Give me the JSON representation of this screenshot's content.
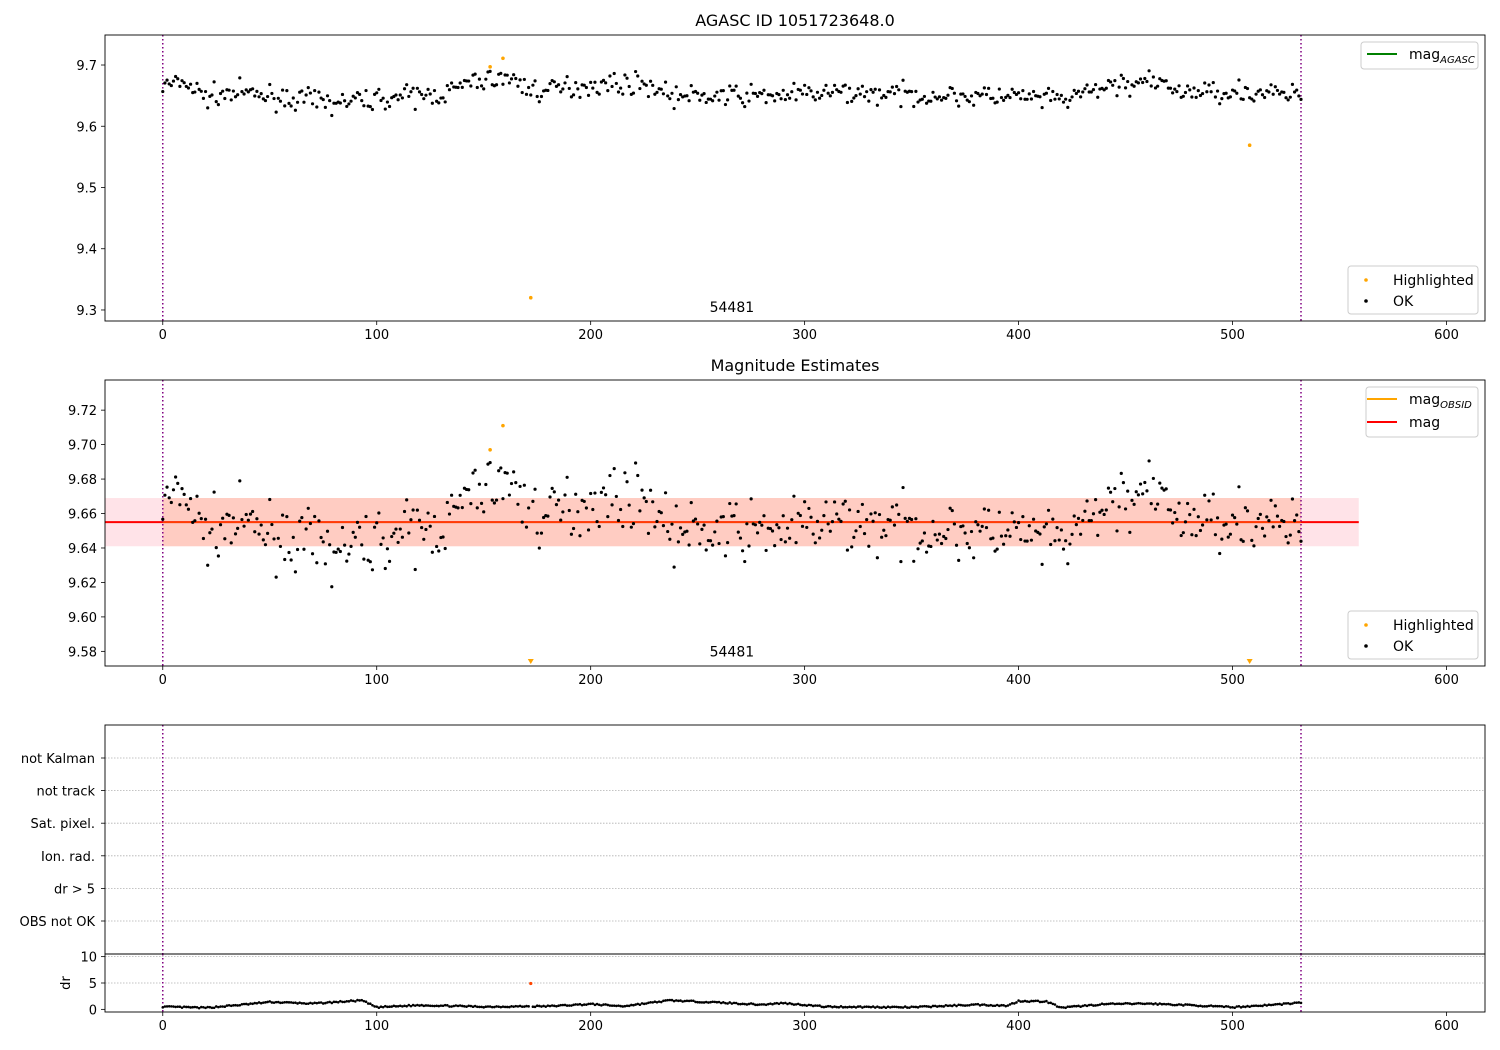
{
  "chart_data": [
    {
      "type": "scatter",
      "title": "AGASC ID 1051723648.0",
      "xlim": [
        -27,
        618
      ],
      "ylim": [
        9.282,
        9.749
      ],
      "xticks": [
        0,
        100,
        200,
        300,
        400,
        500,
        600
      ],
      "yticks": [
        9.3,
        9.4,
        9.5,
        9.6,
        9.7
      ],
      "vlines": [
        0,
        532
      ],
      "annotations": [
        {
          "x": 266,
          "y": 9.3,
          "text": "54481"
        }
      ],
      "legend_upper": {
        "placement": "upper right",
        "entries": [
          {
            "label": "mag",
            "subscript": "AGASC",
            "color": "#008000",
            "kind": "line"
          }
        ]
      },
      "legend_lower": {
        "placement": "lower right",
        "entries": [
          {
            "label": "Highlighted",
            "color": "#ffa500",
            "kind": "point"
          },
          {
            "label": "OK",
            "color": "#000000",
            "kind": "point"
          }
        ]
      },
      "series": [
        {
          "name": "OK",
          "color": "#000000",
          "values_desc": "per-frame magnitudes, noisy around 9.655"
        },
        {
          "name": "Highlighted",
          "color": "#ffa500",
          "x": [
            153,
            159,
            172,
            508
          ],
          "y": [
            9.697,
            9.711,
            9.32,
            9.569
          ]
        }
      ],
      "ok_envelope": [
        {
          "x": 0,
          "y": 9.665
        },
        {
          "x": 10,
          "y": 9.672
        },
        {
          "x": 20,
          "y": 9.648
        },
        {
          "x": 35,
          "y": 9.655
        },
        {
          "x": 60,
          "y": 9.645
        },
        {
          "x": 80,
          "y": 9.638
        },
        {
          "x": 100,
          "y": 9.645
        },
        {
          "x": 130,
          "y": 9.652
        },
        {
          "x": 145,
          "y": 9.672
        },
        {
          "x": 160,
          "y": 9.68
        },
        {
          "x": 175,
          "y": 9.657
        },
        {
          "x": 200,
          "y": 9.668
        },
        {
          "x": 225,
          "y": 9.67
        },
        {
          "x": 240,
          "y": 9.648
        },
        {
          "x": 280,
          "y": 9.65
        },
        {
          "x": 320,
          "y": 9.655
        },
        {
          "x": 360,
          "y": 9.65
        },
        {
          "x": 400,
          "y": 9.648
        },
        {
          "x": 420,
          "y": 9.642
        },
        {
          "x": 445,
          "y": 9.668
        },
        {
          "x": 460,
          "y": 9.672
        },
        {
          "x": 480,
          "y": 9.655
        },
        {
          "x": 500,
          "y": 9.658
        },
        {
          "x": 532,
          "y": 9.65
        }
      ]
    },
    {
      "type": "scatter",
      "title": "Magnitude Estimates",
      "xlim": [
        -27,
        618
      ],
      "ylim": [
        9.5715,
        9.7375
      ],
      "xticks": [
        0,
        100,
        200,
        300,
        400,
        500,
        600
      ],
      "yticks": [
        9.58,
        9.6,
        9.62,
        9.64,
        9.66,
        9.68,
        9.7,
        9.72
      ],
      "vlines": [
        0,
        532
      ],
      "mag_line": 9.655,
      "band_obsid": [
        9.641,
        9.669
      ],
      "band_mag": [
        9.641,
        9.669
      ],
      "band_xrange": [
        -27,
        559
      ],
      "band_obsid_xrange": [
        0,
        532
      ],
      "annotations": [
        {
          "x": 266,
          "y": 9.58,
          "text": "54481"
        }
      ],
      "legend_upper": {
        "placement": "upper right",
        "entries": [
          {
            "label": "mag",
            "subscript": "OBSID",
            "color": "#ffa500",
            "kind": "line"
          },
          {
            "label": "mag",
            "color": "#ff0000",
            "kind": "line"
          }
        ]
      },
      "legend_lower": {
        "placement": "lower right",
        "entries": [
          {
            "label": "Highlighted",
            "color": "#ffa500",
            "kind": "point"
          },
          {
            "label": "OK",
            "color": "#000000",
            "kind": "point"
          }
        ]
      },
      "series": [
        {
          "name": "OK",
          "color": "#000000"
        },
        {
          "name": "Highlighted",
          "color": "#ffa500",
          "x": [
            153,
            159
          ],
          "y": [
            9.697,
            9.711
          ]
        }
      ],
      "clipped_markers": [
        {
          "x": 172,
          "color": "#ffa500"
        },
        {
          "x": 508,
          "color": "#ffa500"
        }
      ]
    },
    {
      "type": "scatter",
      "xlim": [
        -27,
        618
      ],
      "flags": [
        "not Kalman",
        "not track",
        "Sat. pixel.",
        "Ion. rad.",
        "dr > 5",
        "OBS not OK"
      ],
      "vlines": [
        0,
        532
      ]
    },
    {
      "type": "scatter",
      "ylabel": "dr",
      "xlim": [
        -27,
        618
      ],
      "ylim": [
        -0.5,
        10.5
      ],
      "xticks": [
        0,
        100,
        200,
        300,
        400,
        500,
        600
      ],
      "yticks": [
        0,
        5,
        10
      ],
      "vlines": [
        0,
        532
      ],
      "series": [
        {
          "name": "OK",
          "color": "#000000"
        },
        {
          "name": "Highlighted",
          "color": "#ff4500",
          "x": [
            172
          ],
          "y": [
            4.9
          ]
        }
      ],
      "dr_profile": [
        {
          "x": 0,
          "y": 0.5
        },
        {
          "x": 20,
          "y": 0.3
        },
        {
          "x": 35,
          "y": 0.8
        },
        {
          "x": 50,
          "y": 1.4
        },
        {
          "x": 70,
          "y": 1.1
        },
        {
          "x": 93,
          "y": 1.7
        },
        {
          "x": 100,
          "y": 0.4
        },
        {
          "x": 120,
          "y": 0.8
        },
        {
          "x": 150,
          "y": 0.5
        },
        {
          "x": 180,
          "y": 0.6
        },
        {
          "x": 200,
          "y": 1.0
        },
        {
          "x": 215,
          "y": 0.6
        },
        {
          "x": 237,
          "y": 1.7
        },
        {
          "x": 260,
          "y": 1.3
        },
        {
          "x": 280,
          "y": 0.9
        },
        {
          "x": 290,
          "y": 1.2
        },
        {
          "x": 310,
          "y": 0.5
        },
        {
          "x": 350,
          "y": 0.4
        },
        {
          "x": 380,
          "y": 0.9
        },
        {
          "x": 395,
          "y": 0.7
        },
        {
          "x": 400,
          "y": 1.6
        },
        {
          "x": 413,
          "y": 1.5
        },
        {
          "x": 420,
          "y": 0.3
        },
        {
          "x": 440,
          "y": 1.0
        },
        {
          "x": 460,
          "y": 1.1
        },
        {
          "x": 480,
          "y": 0.8
        },
        {
          "x": 500,
          "y": 0.4
        },
        {
          "x": 520,
          "y": 0.9
        },
        {
          "x": 532,
          "y": 1.3
        }
      ]
    }
  ]
}
